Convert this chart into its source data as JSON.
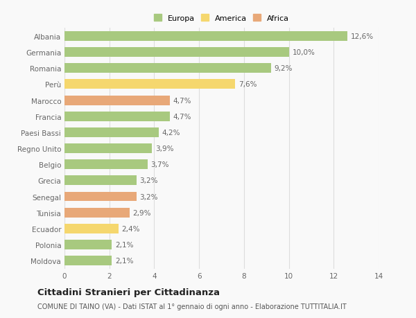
{
  "categories": [
    "Albania",
    "Germania",
    "Romania",
    "Perù",
    "Marocco",
    "Francia",
    "Paesi Bassi",
    "Regno Unito",
    "Belgio",
    "Grecia",
    "Senegal",
    "Tunisia",
    "Ecuador",
    "Polonia",
    "Moldova"
  ],
  "values": [
    12.6,
    10.0,
    9.2,
    7.6,
    4.7,
    4.7,
    4.2,
    3.9,
    3.7,
    3.2,
    3.2,
    2.9,
    2.4,
    2.1,
    2.1
  ],
  "labels": [
    "12,6%",
    "10,0%",
    "9,2%",
    "7,6%",
    "4,7%",
    "4,7%",
    "4,2%",
    "3,9%",
    "3,7%",
    "3,2%",
    "3,2%",
    "2,9%",
    "2,4%",
    "2,1%",
    "2,1%"
  ],
  "continent": [
    "Europa",
    "Europa",
    "Europa",
    "America",
    "Africa",
    "Europa",
    "Europa",
    "Europa",
    "Europa",
    "Europa",
    "Africa",
    "Africa",
    "America",
    "Europa",
    "Europa"
  ],
  "colors": {
    "Europa": "#a8c97f",
    "America": "#f5d76e",
    "Africa": "#e8a878"
  },
  "legend": [
    "Europa",
    "America",
    "Africa"
  ],
  "legend_colors": [
    "#a8c97f",
    "#f5d76e",
    "#e8a878"
  ],
  "title": "Cittadini Stranieri per Cittadinanza",
  "subtitle": "COMUNE DI TAINO (VA) - Dati ISTAT al 1° gennaio di ogni anno - Elaborazione TUTTITALIA.IT",
  "xlim": [
    0,
    14
  ],
  "xticks": [
    0,
    2,
    4,
    6,
    8,
    10,
    12,
    14
  ],
  "background_color": "#f9f9f9",
  "grid_color": "#dddddd",
  "bar_height": 0.6,
  "title_fontsize": 9.5,
  "subtitle_fontsize": 7,
  "label_fontsize": 7.5,
  "tick_fontsize": 7.5,
  "legend_fontsize": 8
}
